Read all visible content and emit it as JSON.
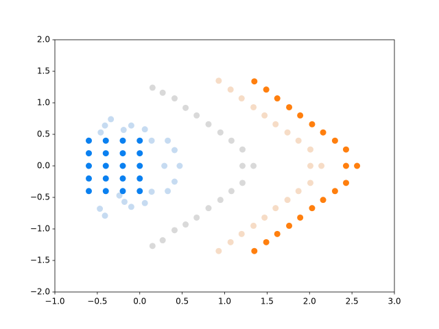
{
  "chart_data": {
    "type": "scatter",
    "xlim": [
      -1,
      3
    ],
    "ylim": [
      -2,
      2
    ],
    "xticks": [
      {
        "value": -1,
        "label": "−1.0"
      },
      {
        "value": -0.5,
        "label": "−0.5"
      },
      {
        "value": 0,
        "label": "0.0"
      },
      {
        "value": 0.5,
        "label": "0.5"
      },
      {
        "value": 1,
        "label": "1.0"
      },
      {
        "value": 1.5,
        "label": "1.5"
      },
      {
        "value": 2,
        "label": "2.0"
      },
      {
        "value": 2.5,
        "label": "2.5"
      },
      {
        "value": 3,
        "label": "3.0"
      }
    ],
    "yticks": [
      {
        "value": -2,
        "label": "−2.0"
      },
      {
        "value": -1.5,
        "label": "−1.5"
      },
      {
        "value": -1,
        "label": "−1.0"
      },
      {
        "value": -0.5,
        "label": "−0.5"
      },
      {
        "value": 0,
        "label": "0.0"
      },
      {
        "value": 0.5,
        "label": "0.5"
      },
      {
        "value": 1,
        "label": "1.0"
      },
      {
        "value": 1.5,
        "label": "1.5"
      },
      {
        "value": 2,
        "label": "2.0"
      }
    ],
    "series": [
      {
        "color": "#c6dbf1",
        "x": [
          -0.41,
          -0.34,
          -0.46,
          -0.19,
          -0.1,
          0.06,
          0.14,
          0.33,
          0.41,
          0.29,
          0.47,
          0.41,
          0.33,
          0.14,
          0.06,
          -0.1,
          -0.18,
          -0.24,
          -0.47,
          -0.41
        ],
        "values": [
          0.64,
          0.74,
          0.53,
          0.57,
          0.64,
          0.58,
          0.4,
          0.4,
          0.25,
          0,
          0,
          -0.25,
          -0.4,
          -0.41,
          -0.59,
          -0.65,
          -0.57,
          -0.47,
          -0.68,
          -0.79
        ]
      },
      {
        "color": "#d9d9d9",
        "x": [
          0.15,
          0.27,
          0.41,
          0.54,
          0.67,
          0.81,
          0.95,
          1.08,
          1.21,
          1.21,
          1.34,
          1.21,
          1.08,
          0.95,
          0.81,
          0.67,
          0.54,
          0.41,
          0.27,
          0.15
        ],
        "values": [
          1.24,
          1.16,
          1.07,
          0.92,
          0.8,
          0.66,
          0.53,
          0.4,
          0.26,
          0,
          0,
          -0.27,
          -0.4,
          -0.54,
          -0.67,
          -0.82,
          -0.93,
          -1.02,
          -1.18,
          -1.27
        ]
      },
      {
        "color": "#f6dcc6",
        "x": [
          0.93,
          1.07,
          1.2,
          1.34,
          1.47,
          1.6,
          1.74,
          1.87,
          2.01,
          2.01,
          2.14,
          2.01,
          1.87,
          1.74,
          1.6,
          1.47,
          1.34,
          1.2,
          1.07,
          0.93
        ],
        "values": [
          1.35,
          1.21,
          1.07,
          0.93,
          0.8,
          0.66,
          0.53,
          0.4,
          0.26,
          0,
          0,
          -0.27,
          -0.4,
          -0.54,
          -0.67,
          -0.82,
          -0.95,
          -1.08,
          -1.21,
          -1.35
        ]
      },
      {
        "color": "#0a80f0",
        "x": [
          -0.6,
          -0.6,
          -0.6,
          -0.6,
          -0.6,
          -0.4,
          -0.4,
          -0.4,
          -0.4,
          -0.4,
          -0.2,
          -0.2,
          -0.2,
          -0.2,
          -0.2,
          0,
          0,
          0,
          0,
          0
        ],
        "values": [
          0.4,
          0.2,
          0,
          -0.2,
          -0.4,
          0.4,
          0.2,
          0,
          -0.2,
          -0.4,
          0.4,
          0.2,
          0,
          -0.2,
          -0.4,
          0.4,
          0.2,
          0,
          -0.2,
          -0.4
        ]
      },
      {
        "color": "#ff7f0e",
        "x": [
          1.35,
          1.49,
          1.62,
          1.76,
          1.89,
          2.03,
          2.16,
          2.3,
          2.43,
          2.43,
          2.56,
          2.43,
          2.3,
          2.16,
          2.03,
          1.89,
          1.76,
          1.62,
          1.49,
          1.35
        ],
        "values": [
          1.34,
          1.21,
          1.07,
          0.93,
          0.8,
          0.66,
          0.53,
          0.4,
          0.26,
          0,
          0,
          -0.27,
          -0.4,
          -0.54,
          -0.67,
          -0.82,
          -0.95,
          -1.08,
          -1.21,
          -1.35
        ]
      }
    ]
  }
}
